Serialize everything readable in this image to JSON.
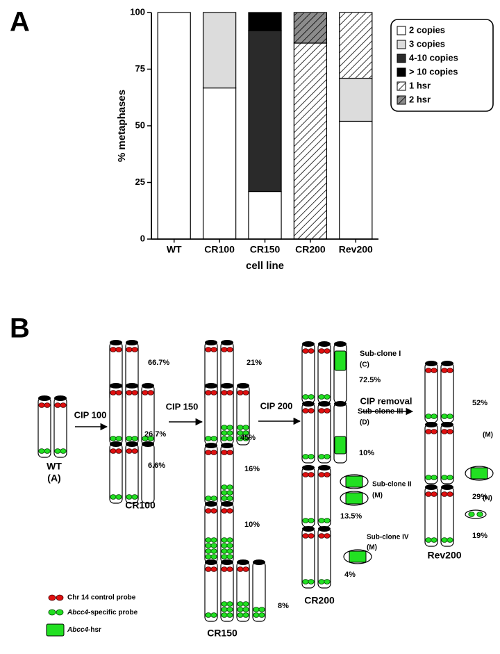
{
  "panel_labels": [
    "A",
    "B"
  ],
  "chart_data": {
    "type": "stacked_bar",
    "ylabel": "% metaphases",
    "xlabel": "cell line",
    "categories": [
      "WT",
      "CR100",
      "CR150",
      "CR200",
      "Rev200"
    ],
    "series": [
      {
        "name": "2 copies",
        "color": "#ffffff",
        "values": [
          100,
          66.7,
          21,
          0,
          52
        ]
      },
      {
        "name": "3 copies",
        "color": "#dcdcdc",
        "values": [
          0,
          33.3,
          0,
          0,
          19
        ]
      },
      {
        "name": "4-10 copies",
        "color": "#2a2a2a",
        "values": [
          0,
          0,
          71,
          0,
          0
        ]
      },
      {
        "name": "> 10 copies",
        "color": "#000000",
        "values": [
          0,
          0,
          8,
          0,
          0
        ]
      },
      {
        "name": "1 hsr",
        "color": "#ffffff",
        "hatch": true,
        "values": [
          0,
          0,
          0,
          86.5,
          29
        ]
      },
      {
        "name": "2 hsr",
        "color": "#8c8c8c",
        "hatch": true,
        "values": [
          0,
          0,
          0,
          13.5,
          0
        ]
      }
    ],
    "ylim": [
      0,
      100
    ],
    "yticks": [
      0,
      25,
      50,
      75,
      100
    ],
    "legend": "upper right"
  },
  "diagram": {
    "steps": [
      "CIP 100",
      "CIP 150",
      "CIP 200",
      "CIP removal"
    ],
    "populations": [
      "WT",
      "CR100",
      "CR150",
      "CR200",
      "Rev200"
    ],
    "wt_code": "(A)",
    "cr100_percent": [
      "66.7%",
      "26.7%",
      "6.6%"
    ],
    "cr150_percent": [
      "21%",
      "45%",
      "16%",
      "10%",
      "8%"
    ],
    "cr200_percent": [
      "72.5%",
      "10%",
      "13.5%",
      "4%"
    ],
    "rev200_percent": [
      "52%",
      "29%",
      "19%"
    ],
    "subclones": [
      {
        "name": "Sub-clone I",
        "code": "(C)"
      },
      {
        "name": "Sub-clone III",
        "code": "(D)"
      },
      {
        "name": "Sub-clone II",
        "code": "(M)"
      },
      {
        "name": "Sub-clone IV",
        "code": "(M)"
      }
    ],
    "rev200_codes": [
      "(M)",
      "(N)"
    ],
    "legend": {
      "red": "Chr 14 control probe",
      "green": [
        "Abcc4",
        "-specific probe"
      ],
      "hsr": [
        "Abcc4",
        "-hsr"
      ]
    }
  }
}
